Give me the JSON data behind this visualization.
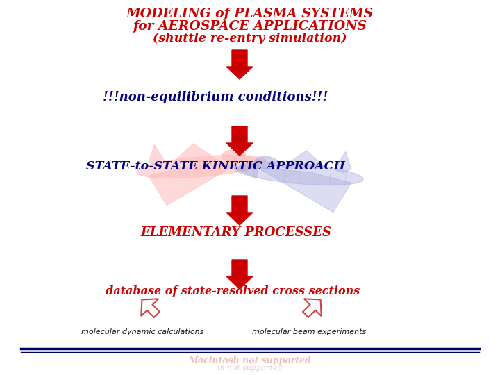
{
  "title_line1": "MODELING of PLASMA SYSTEMS",
  "title_line2": "for AEROSPACE APPLICATIONS",
  "title_line3": "(shuttle re-entry simulation)",
  "title_color": "#cc0000",
  "text1": "!!!non-equilibrium conditions!!!",
  "text1_color": "#000080",
  "text2": "STATE-to-STATE KINETIC APPROACH",
  "text2_color": "#000080",
  "text3": "ELEMENTARY PROCESSES",
  "text3_color": "#cc0000",
  "text4": "database of state-resolved cross sections",
  "text4_color": "#cc0000",
  "text5a": "molecular dynamic calculations",
  "text5b": "molecular beam experiments",
  "text5_color": "#111111",
  "arrow_color": "#cc0000",
  "bg_color": "#ffffff",
  "line_color": "#000060",
  "shuttle_pink": "#ffbbbb",
  "shuttle_blue": "#aaaadd",
  "arrow_hollow_color": "#cc4444"
}
